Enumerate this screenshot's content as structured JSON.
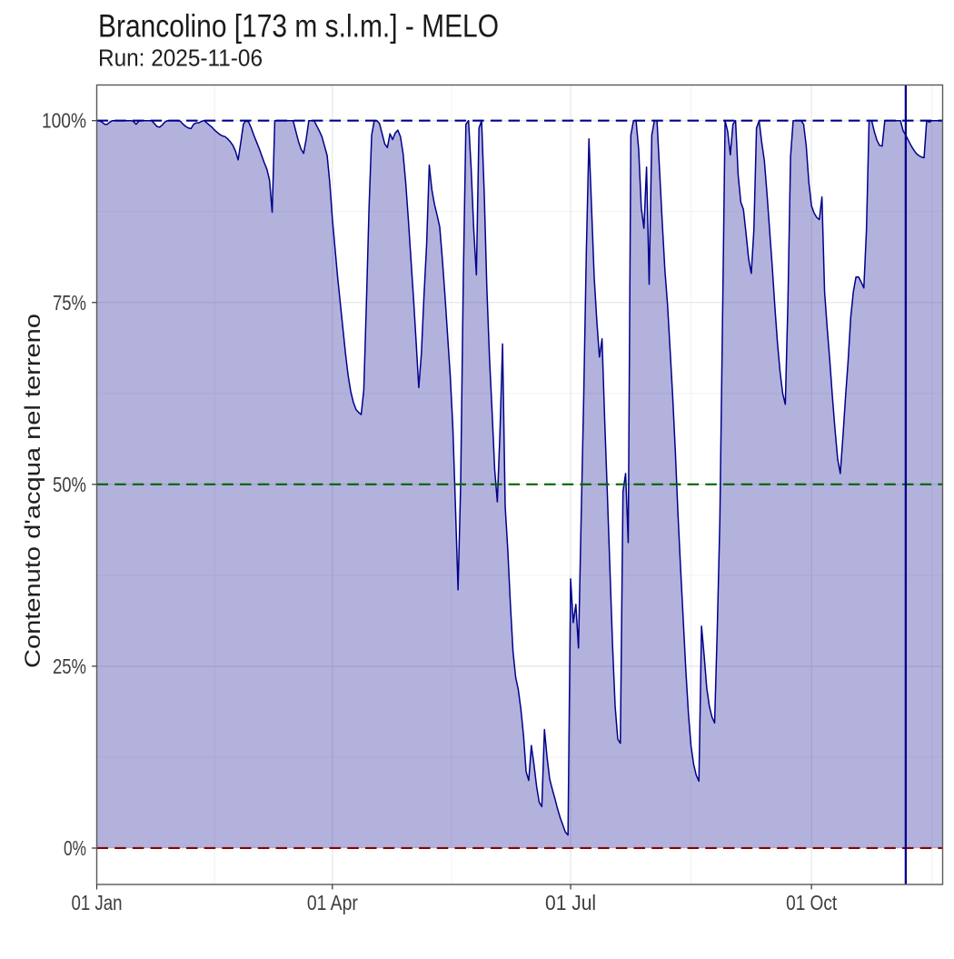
{
  "title": "Brancolino [173 m s.l.m.] - MELO",
  "subtitle": "Run: 2025-11-06",
  "chart_data": {
    "type": "area",
    "title": "Brancolino [173 m s.l.m.] - MELO",
    "subtitle": "Run: 2025-11-06",
    "xlabel": "",
    "ylabel": "Contenuto d'acqua nel terreno",
    "x_tick_labels": [
      "01 Jan",
      "01 Apr",
      "01 Jul",
      "01 Oct"
    ],
    "x_tick_days": [
      0,
      90,
      181,
      273
    ],
    "x_minor_days": [
      45,
      135.5,
      227,
      319
    ],
    "y_tick_labels": [
      "0%",
      "25%",
      "50%",
      "75%",
      "100%"
    ],
    "y_tick_values": [
      0,
      25,
      50,
      75,
      100
    ],
    "y_minor_values": [
      12.5,
      37.5,
      62.5,
      87.5
    ],
    "xlim_days": [
      0,
      323.1
    ],
    "ylim_pct": [
      -5.0,
      104.9
    ],
    "grid": true,
    "legend_position": "none",
    "series": [
      {
        "name": "Contenuto d'acqua nel terreno",
        "start_day": 0,
        "step_days": 1,
        "values_pct": [
          100,
          100,
          99.8,
          99.5,
          99.5,
          99.8,
          100,
          100,
          100,
          100,
          100,
          100,
          100,
          100,
          99.9,
          99.5,
          99.9,
          100,
          100,
          100,
          100,
          100,
          99.6,
          99.2,
          99.1,
          99.4,
          99.8,
          100,
          100,
          100,
          100,
          100,
          99.9,
          99.5,
          99.2,
          99.0,
          98.9,
          99.5,
          99.7,
          99.7,
          99.9,
          100,
          99.7,
          99.4,
          99.1,
          98.7,
          98.4,
          98.1,
          97.9,
          97.8,
          97.5,
          97.1,
          96.6,
          95.8,
          94.6,
          97.0,
          99.5,
          100,
          99.8,
          99.0,
          98.0,
          97.1,
          96.2,
          95.2,
          94.2,
          93.3,
          91.8,
          87.4,
          100,
          100,
          100,
          100,
          100,
          100,
          100,
          100,
          98.6,
          97.2,
          96.1,
          95.5,
          97.5,
          100,
          100,
          100,
          99.3,
          98.6,
          97.8,
          96.5,
          95.2,
          91.5,
          86.5,
          82.5,
          78.5,
          75,
          71.5,
          68,
          65,
          62.8,
          61.3,
          60.3,
          59.9,
          59.6,
          63,
          75,
          88,
          98,
          100,
          100,
          99.6,
          98.2,
          96.8,
          96.3,
          98.2,
          97.4,
          98.3,
          98.7,
          97.8,
          95.5,
          91.5,
          86.5,
          81,
          75.5,
          69.5,
          63.3,
          68,
          76,
          83,
          93.9,
          90.5,
          88.5,
          87,
          85.4,
          81,
          76,
          70.5,
          65,
          58,
          47,
          35.5,
          50,
          78,
          99.5,
          100,
          93.5,
          85,
          78.8,
          99,
          100,
          90,
          77,
          67.5,
          60,
          52,
          47.6,
          57,
          69.3,
          47,
          41,
          33.5,
          27,
          23.5,
          21.8,
          19.1,
          15.5,
          10.5,
          9.3,
          14.1,
          11.5,
          8.5,
          6.3,
          5.7,
          16.3,
          12.5,
          9.5,
          8.1,
          6.8,
          5.4,
          4.2,
          3.2,
          2.2,
          1.8,
          37,
          31,
          33.5,
          27.5,
          45,
          62,
          82,
          97.5,
          88,
          78.5,
          72.5,
          67.5,
          70,
          59,
          49,
          38.5,
          28,
          19.5,
          15,
          14.4,
          49,
          51.5,
          42,
          98,
          100,
          100,
          96,
          88,
          85.2,
          93.6,
          77.5,
          98,
          100,
          100,
          93,
          86,
          79.5,
          74.8,
          68.5,
          62,
          54.5,
          46,
          38.5,
          31.5,
          24.5,
          18.5,
          14,
          11.5,
          10,
          9.2,
          30.5,
          26.5,
          22,
          19.5,
          18,
          17.2,
          30,
          45,
          72,
          100,
          98.5,
          95.3,
          99.5,
          100,
          92.5,
          88.8,
          87.8,
          84.5,
          81,
          79,
          85,
          99,
          100,
          97,
          94.5,
          90,
          85,
          80,
          74.5,
          69.5,
          65.5,
          62.5,
          61,
          75,
          95,
          100,
          100,
          100,
          100,
          99.5,
          96.5,
          91.5,
          88.3,
          87.3,
          86.7,
          86.4,
          89.5,
          76.5,
          71.5,
          67,
          62,
          57.5,
          53.5,
          51.5,
          56.5,
          62,
          67,
          73,
          76.5,
          78.5,
          78.5,
          77.8,
          77,
          85,
          100,
          100,
          98.5,
          97.3,
          96.6,
          96.5,
          100,
          100,
          100,
          100,
          100,
          100,
          100,
          98.6,
          98.0,
          97.3,
          96.6,
          96.0,
          95.5,
          95.2,
          95.0,
          94.9,
          100,
          99.8,
          100,
          100,
          100,
          100,
          100
        ]
      }
    ],
    "reference_lines": [
      {
        "type": "hline",
        "value_pct": 100,
        "style": "dashed",
        "color": "#00008B"
      },
      {
        "type": "hline",
        "value_pct": 50,
        "style": "dashed",
        "color": "#006400"
      },
      {
        "type": "hline",
        "value_pct": 0,
        "style": "dashed",
        "color": "#8B0000"
      },
      {
        "type": "vline",
        "day": 309,
        "date": "2025-11-06",
        "style": "solid",
        "color": "#00008B"
      }
    ],
    "colors": {
      "line": "#00008B",
      "fill": "rgba(0,0,139,0.30)",
      "grid_major": "#E8E8E8",
      "grid_minor": "#F2F2F2",
      "panel_border": "#595959",
      "tick": "#333333",
      "axis_text": "#3D3D3D",
      "title_text": "#1A1A1A"
    }
  }
}
